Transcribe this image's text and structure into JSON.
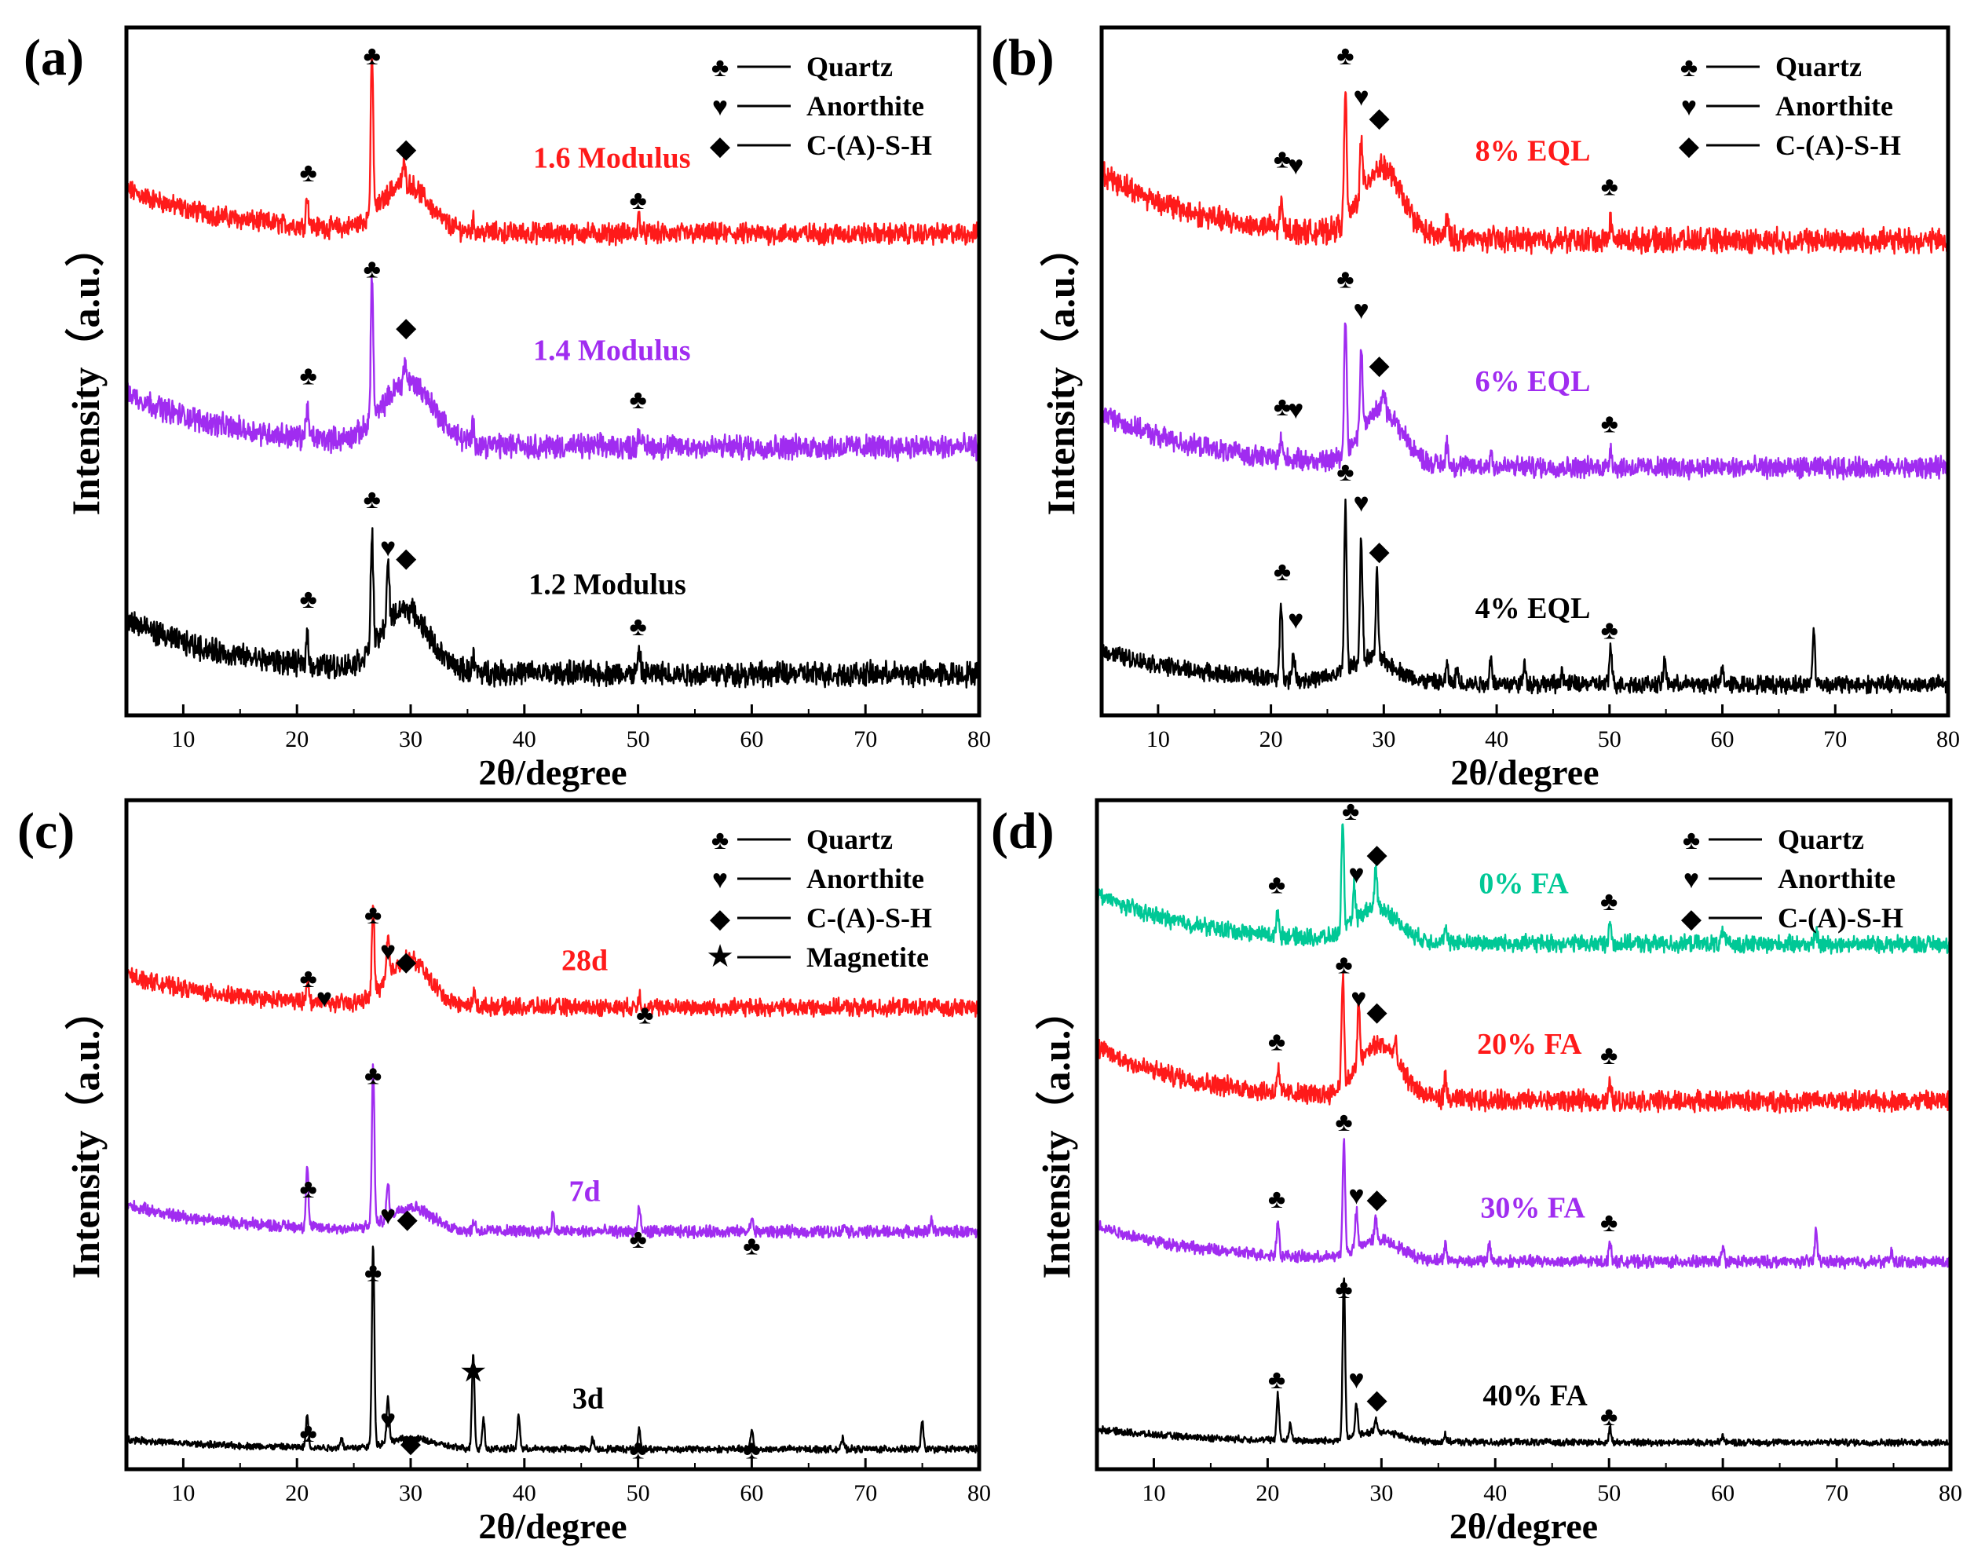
{
  "phases": {
    "Q": {
      "symbol": "♣",
      "name": "Quartz"
    },
    "A": {
      "symbol": "♥",
      "name": "Anorthite"
    },
    "C": {
      "symbol": "◆",
      "name": "C-(A)-S-H"
    },
    "M": {
      "symbol": "★",
      "name": "Magnetite"
    }
  },
  "colors": {
    "red": "#ff1a1a",
    "purple": "#a02cf0",
    "black": "#000000",
    "teal": "#00c896"
  },
  "chart_data": [
    {
      "type": "line",
      "panel_label": "(a)",
      "xlabel": "2θ/degree",
      "ylabel": "Intensity（a.u.）",
      "xlim": [
        5,
        80
      ],
      "ylim": [
        0,
        10
      ],
      "xticks": [
        10,
        20,
        30,
        40,
        50,
        60,
        70,
        80
      ],
      "legend": [
        "Q",
        "A",
        "C"
      ],
      "legend_position": "top-right",
      "series": [
        {
          "name": "1.6 Modulus",
          "color": "#ff1a1a",
          "base": 7.0,
          "rise": 0.65,
          "hump": [
            29.5,
            0.7,
            2.0
          ],
          "noise": 0.12,
          "peaks": [
            [
              20.9,
              0.45
            ],
            [
              26.6,
              2.3
            ],
            [
              29.4,
              0.3
            ],
            [
              35.5,
              0.15
            ],
            [
              50.1,
              0.25
            ]
          ],
          "label_pos": [
            47.7,
            8.1
          ],
          "markers": [
            [
              "Q",
              21,
              7.9
            ],
            [
              "Q",
              26.6,
              9.6
            ],
            [
              "C",
              29.6,
              8.25
            ],
            [
              "Q",
              50,
              7.5
            ]
          ]
        },
        {
          "name": "1.4 Modulus",
          "color": "#a02cf0",
          "base": 3.9,
          "rise": 0.8,
          "hump": [
            29.8,
            0.9,
            2.2
          ],
          "noise": 0.14,
          "peaks": [
            [
              20.9,
              0.45
            ],
            [
              26.6,
              2.1
            ],
            [
              29.5,
              0.3
            ],
            [
              35.5,
              0.25
            ],
            [
              39.5,
              0.15
            ],
            [
              50.1,
              0.25
            ]
          ],
          "label_pos": [
            47.7,
            5.3
          ],
          "markers": [
            [
              "Q",
              21,
              4.95
            ],
            [
              "Q",
              26.6,
              6.5
            ],
            [
              "C",
              29.6,
              5.65
            ],
            [
              "Q",
              50,
              4.6
            ]
          ]
        },
        {
          "name": "1.2 Modulus",
          "color": "#000000",
          "base": 0.6,
          "rise": 0.8,
          "hump": [
            29.5,
            0.9,
            2.0
          ],
          "noise": 0.14,
          "peaks": [
            [
              20.9,
              0.45
            ],
            [
              26.6,
              1.7
            ],
            [
              28.0,
              0.9
            ],
            [
              35.5,
              0.2
            ],
            [
              50.1,
              0.3
            ]
          ],
          "label_pos": [
            47.3,
            1.9
          ],
          "markers": [
            [
              "Q",
              21,
              1.7
            ],
            [
              "Q",
              26.6,
              3.15
            ],
            [
              "A",
              28,
              2.45
            ],
            [
              "C",
              29.6,
              2.3
            ],
            [
              "Q",
              50,
              1.3
            ]
          ]
        }
      ]
    },
    {
      "type": "line",
      "panel_label": "(b)",
      "xlabel": "2θ/degree",
      "ylabel": "Intensity（a.u.）",
      "xlim": [
        5,
        80
      ],
      "ylim": [
        0,
        10
      ],
      "xticks": [
        10,
        20,
        30,
        40,
        50,
        60,
        70,
        80
      ],
      "legend": [
        "Q",
        "A",
        "C"
      ],
      "legend_position": "top-right",
      "series": [
        {
          "name": "8% EQL",
          "color": "#ff1a1a",
          "base": 6.9,
          "rise": 1.0,
          "hump": [
            29.8,
            1.0,
            1.8
          ],
          "noise": 0.14,
          "peaks": [
            [
              20.9,
              0.4
            ],
            [
              26.6,
              1.9
            ],
            [
              28.0,
              0.8
            ],
            [
              35.6,
              0.35
            ],
            [
              50.1,
              0.3
            ]
          ],
          "label_pos": [
            43.2,
            8.2
          ],
          "markers": [
            [
              "Q",
              21,
              8.1
            ],
            [
              "A",
              22.2,
              8.0
            ],
            [
              "Q",
              26.6,
              9.6
            ],
            [
              "A",
              28,
              9.0
            ],
            [
              "C",
              29.6,
              8.7
            ],
            [
              "Q",
              50,
              7.7
            ]
          ]
        },
        {
          "name": "6% EQL",
          "color": "#a02cf0",
          "base": 3.6,
          "rise": 0.8,
          "hump": [
            29.8,
            0.8,
            1.8
          ],
          "noise": 0.12,
          "peaks": [
            [
              20.9,
              0.3
            ],
            [
              26.6,
              2.0
            ],
            [
              28.0,
              1.2
            ],
            [
              30.0,
              0.3
            ],
            [
              35.6,
              0.35
            ],
            [
              39.5,
              0.2
            ],
            [
              50.1,
              0.3
            ]
          ],
          "label_pos": [
            43.2,
            4.85
          ],
          "markers": [
            [
              "Q",
              21,
              4.5
            ],
            [
              "A",
              22.2,
              4.45
            ],
            [
              "Q",
              26.6,
              6.35
            ],
            [
              "A",
              28,
              5.9
            ],
            [
              "C",
              29.6,
              5.1
            ],
            [
              "Q",
              50,
              4.25
            ]
          ]
        },
        {
          "name": "4% EQL",
          "color": "#000000",
          "base": 0.45,
          "rise": 0.5,
          "hump": [
            29.0,
            0.35,
            2.0
          ],
          "noise": 0.1,
          "peaks": [
            [
              20.9,
              1.1
            ],
            [
              22.0,
              0.4
            ],
            [
              26.6,
              2.4
            ],
            [
              28.0,
              1.8
            ],
            [
              29.4,
              1.2
            ],
            [
              35.6,
              0.25
            ],
            [
              36.5,
              0.2
            ],
            [
              39.5,
              0.4
            ],
            [
              42.5,
              0.3
            ],
            [
              45.8,
              0.2
            ],
            [
              50.1,
              0.55
            ],
            [
              54.9,
              0.35
            ],
            [
              60.0,
              0.25
            ],
            [
              68.1,
              0.8
            ]
          ],
          "label_pos": [
            43.2,
            1.55
          ],
          "markers": [
            [
              "Q",
              21,
              2.1
            ],
            [
              "A",
              22.2,
              1.4
            ],
            [
              "Q",
              26.6,
              3.55
            ],
            [
              "A",
              28,
              3.1
            ],
            [
              "C",
              29.6,
              2.4
            ],
            [
              "Q",
              50,
              1.25
            ]
          ]
        }
      ]
    },
    {
      "type": "line",
      "panel_label": "(c)",
      "xlabel": "2θ/degree",
      "ylabel": "Intensity（a.u.）",
      "xlim": [
        5,
        80
      ],
      "ylim": [
        0,
        10
      ],
      "xticks": [
        10,
        20,
        30,
        40,
        50,
        60,
        70,
        80
      ],
      "legend": [
        "Q",
        "A",
        "C",
        "M"
      ],
      "legend_position": "top-right",
      "series": [
        {
          "name": "28d",
          "color": "#ff1a1a",
          "base": 6.9,
          "rise": 0.5,
          "hump": [
            29.8,
            0.7,
            1.8
          ],
          "noise": 0.1,
          "peaks": [
            [
              20.9,
              0.35
            ],
            [
              26.7,
              1.3
            ],
            [
              28.0,
              0.6
            ],
            [
              35.6,
              0.2
            ],
            [
              50.1,
              0.2
            ]
          ],
          "label_pos": [
            45.3,
            7.6
          ],
          "markers": [
            [
              "Q",
              21,
              7.35
            ],
            [
              "A",
              22.4,
              7.05
            ],
            [
              "Q",
              26.7,
              8.3
            ],
            [
              "A",
              28,
              7.75
            ],
            [
              "C",
              29.6,
              7.6
            ],
            [
              "Q",
              50.6,
              6.8
            ]
          ]
        },
        {
          "name": "7d",
          "color": "#a02cf0",
          "base": 3.55,
          "rise": 0.4,
          "hump": [
            30.0,
            0.35,
            1.8
          ],
          "noise": 0.07,
          "peaks": [
            [
              20.9,
              0.9
            ],
            [
              26.7,
              2.4
            ],
            [
              28.0,
              0.5
            ],
            [
              35.6,
              0.15
            ],
            [
              42.5,
              0.25
            ],
            [
              50.1,
              0.35
            ],
            [
              60.0,
              0.2
            ],
            [
              68.2,
              0.12
            ],
            [
              75.8,
              0.2
            ]
          ],
          "label_pos": [
            45.3,
            4.15
          ],
          "markers": [
            [
              "Q",
              21,
              4.2
            ],
            [
              "Q",
              26.7,
              5.9
            ],
            [
              "A",
              28,
              3.8
            ],
            [
              "C",
              29.7,
              3.75
            ],
            [
              "Q",
              50,
              3.45
            ],
            [
              "Q",
              60,
              3.35
            ]
          ]
        },
        {
          "name": "3d",
          "color": "#000000",
          "base": 0.3,
          "rise": 0.15,
          "hump": [
            30.0,
            0.15,
            2.0
          ],
          "noise": 0.04,
          "peaks": [
            [
              20.9,
              0.5
            ],
            [
              23.9,
              0.15
            ],
            [
              26.7,
              3.0
            ],
            [
              28.0,
              0.7
            ],
            [
              35.5,
              1.45
            ],
            [
              36.4,
              0.45
            ],
            [
              39.5,
              0.5
            ],
            [
              46.0,
              0.15
            ],
            [
              50.1,
              0.3
            ],
            [
              60.0,
              0.3
            ],
            [
              68.0,
              0.15
            ],
            [
              75.0,
              0.4
            ]
          ],
          "label_pos": [
            45.6,
            1.05
          ],
          "markers": [
            [
              "Q",
              21,
              0.55
            ],
            [
              "Q",
              26.7,
              2.95
            ],
            [
              "A",
              28,
              0.75
            ],
            [
              "C",
              30,
              0.4
            ],
            [
              "M",
              35.5,
              1.45
            ],
            [
              "Q",
              50,
              0.3
            ],
            [
              "Q",
              60,
              0.3
            ]
          ]
        }
      ]
    },
    {
      "type": "line",
      "panel_label": "(d)",
      "xlabel": "2θ/degree",
      "ylabel": "Intensity（a.u.）",
      "xlim": [
        5,
        80
      ],
      "ylim": [
        0,
        10
      ],
      "xticks": [
        10,
        20,
        30,
        40,
        50,
        60,
        70,
        80
      ],
      "legend": [
        "Q",
        "A",
        "C"
      ],
      "legend_position": "top-right",
      "series": [
        {
          "name": "0% FA",
          "color": "#00c896",
          "base": 7.85,
          "rise": 0.75,
          "hump": [
            29.6,
            0.5,
            1.8
          ],
          "noise": 0.1,
          "peaks": [
            [
              20.9,
              0.35
            ],
            [
              26.6,
              1.7
            ],
            [
              27.6,
              0.55
            ],
            [
              29.5,
              0.6
            ],
            [
              35.6,
              0.2
            ],
            [
              50.1,
              0.3
            ],
            [
              60.0,
              0.2
            ],
            [
              68.2,
              0.2
            ]
          ],
          "label_pos": [
            42.5,
            8.75
          ],
          "markers": [
            [
              "Q",
              20.8,
              8.75
            ],
            [
              "Q",
              27.3,
              9.85
            ],
            [
              "A",
              27.8,
              8.9
            ],
            [
              "C",
              29.6,
              9.2
            ],
            [
              "Q",
              50,
              8.5
            ]
          ]
        },
        {
          "name": "20% FA",
          "color": "#ff1a1a",
          "base": 5.5,
          "rise": 0.8,
          "hump": [
            29.8,
            0.8,
            1.8
          ],
          "noise": 0.12,
          "peaks": [
            [
              20.9,
              0.35
            ],
            [
              26.6,
              1.7
            ],
            [
              28.0,
              0.9
            ],
            [
              31.2,
              0.25
            ],
            [
              35.6,
              0.3
            ],
            [
              50.1,
              0.25
            ]
          ],
          "label_pos": [
            43,
            6.35
          ],
          "markers": [
            [
              "Q",
              20.8,
              6.4
            ],
            [
              "Q",
              26.7,
              7.55
            ],
            [
              "A",
              28,
              7.05
            ],
            [
              "C",
              29.6,
              6.85
            ],
            [
              "Q",
              50,
              6.2
            ]
          ]
        },
        {
          "name": "30% FA",
          "color": "#a02cf0",
          "base": 3.1,
          "rise": 0.55,
          "hump": [
            29.8,
            0.3,
            1.8
          ],
          "noise": 0.07,
          "peaks": [
            [
              20.9,
              0.55
            ],
            [
              26.7,
              1.7
            ],
            [
              27.8,
              0.55
            ],
            [
              29.5,
              0.3
            ],
            [
              35.6,
              0.25
            ],
            [
              39.5,
              0.25
            ],
            [
              50.1,
              0.3
            ],
            [
              60.0,
              0.2
            ],
            [
              68.2,
              0.5
            ],
            [
              74.8,
              0.15
            ]
          ],
          "label_pos": [
            43.3,
            3.9
          ],
          "markers": [
            [
              "Q",
              20.8,
              4.05
            ],
            [
              "Q",
              26.7,
              5.2
            ],
            [
              "A",
              27.8,
              4.1
            ],
            [
              "C",
              29.6,
              4.05
            ],
            [
              "Q",
              50,
              3.7
            ]
          ]
        },
        {
          "name": "40% FA",
          "color": "#000000",
          "base": 0.4,
          "rise": 0.2,
          "hump": [
            29.8,
            0.15,
            1.8
          ],
          "noise": 0.04,
          "peaks": [
            [
              20.9,
              0.7
            ],
            [
              22.0,
              0.25
            ],
            [
              26.7,
              2.4
            ],
            [
              27.8,
              0.5
            ],
            [
              29.5,
              0.2
            ],
            [
              35.6,
              0.1
            ],
            [
              50.1,
              0.2
            ],
            [
              60.0,
              0.1
            ]
          ],
          "label_pos": [
            43.5,
            1.1
          ],
          "markers": [
            [
              "Q",
              20.8,
              1.35
            ],
            [
              "Q",
              26.7,
              2.7
            ],
            [
              "A",
              27.8,
              1.35
            ],
            [
              "C",
              29.6,
              1.05
            ],
            [
              "Q",
              50,
              0.8
            ]
          ]
        }
      ]
    }
  ]
}
